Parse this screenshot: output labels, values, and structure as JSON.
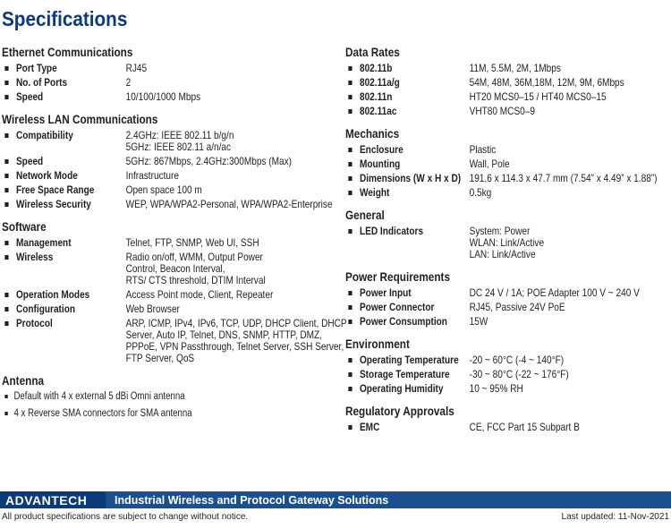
{
  "header": {
    "title": "Specifications"
  },
  "left_column": [
    {
      "heading": "Ethernet Communications",
      "items": [
        {
          "label": "Port Type",
          "value": [
            "RJ45"
          ]
        },
        {
          "label": "No. of Ports",
          "value": [
            "2"
          ]
        },
        {
          "label": "Speed",
          "value": [
            "10/100/1000 Mbps"
          ]
        }
      ]
    },
    {
      "heading": "Wireless LAN Communications",
      "items": [
        {
          "label": "Compatibility",
          "value": [
            "2.4GHz: IEEE 802.11 b/g/n",
            "5GHz: IEEE 802.11 a/n/ac"
          ]
        },
        {
          "label": "Speed",
          "value": [
            "5GHz: 867Mbps, 2.4GHz:300Mbps (Max)"
          ]
        },
        {
          "label": "Network Mode",
          "value": [
            "Infrastructure"
          ]
        },
        {
          "label": "Free Space Range",
          "value": [
            "Open space 100 m"
          ]
        },
        {
          "label": "Wireless Security",
          "value": [
            "WEP, WPA/WPA2-Personal, WPA/WPA2-Enterprise"
          ]
        }
      ]
    },
    {
      "heading": "Software",
      "items": [
        {
          "label": "Management",
          "value": [
            "Telnet, FTP, SNMP, Web UI, SSH"
          ]
        },
        {
          "label": "Wireless",
          "value": [
            "Radio on/off, WMM, Output Power",
            "Control, Beacon Interval,",
            "RTS/ CTS threshold, DTIM Interval"
          ]
        },
        {
          "label": "Operation Modes",
          "value": [
            "Access Point mode, Client, Repeater"
          ]
        },
        {
          "label": "Configuration",
          "value": [
            "Web Browser"
          ]
        },
        {
          "label": "Protocol",
          "value": [
            "ARP, ICMP, IPv4, IPv6, TCP, UDP, DHCP Client, DHCP",
            "Server, Auto IP, Telnet, DNS, SNMP, HTTP, DMZ,",
            "PPPoE, VPN Passthrough, Telnet Server, SSH Server,",
            "FTP Server, QoS"
          ]
        }
      ]
    },
    {
      "heading": "Antenna",
      "bullets": [
        "Default with 4 x external 5 dBi Omni antenna",
        "4 x Reverse SMA connectors for SMA antenna"
      ]
    }
  ],
  "right_column": [
    {
      "heading": "Data Rates",
      "items": [
        {
          "label": "802.11b",
          "value": [
            "11M, 5.5M, 2M, 1Mbps"
          ]
        },
        {
          "label": "802.11a/g",
          "value": [
            "54M, 48M, 36M,18M, 12M, 9M, 6Mbps"
          ]
        },
        {
          "label": "802.11n",
          "value": [
            "HT20 MCS0–15 / HT40 MCS0–15"
          ]
        },
        {
          "label": "802.11ac",
          "value": [
            "VHT80 MCS0–9"
          ]
        }
      ]
    },
    {
      "heading": "Mechanics",
      "items": [
        {
          "label": "Enclosure",
          "value": [
            "Plastic"
          ]
        },
        {
          "label": "Mounting",
          "value": [
            "Wall, Pole"
          ]
        },
        {
          "label": "Dimensions (W x H x D)",
          "value": [
            "191.6 x 114.3 x 47.7 mm (7.54” x 4.49” x 1.88”)"
          ]
        },
        {
          "label": "Weight",
          "value": [
            "0.5kg"
          ]
        }
      ]
    },
    {
      "heading": "General",
      "items": [
        {
          "label": "LED Indicators",
          "value": [
            "System: Power",
            "WLAN: Link/Active",
            "LAN: Link/Active"
          ]
        }
      ]
    },
    {
      "heading": "Power Requirements",
      "items": [
        {
          "label": "Power Input",
          "value": [
            "DC 24 V / 1A; POE Adapter 100 V ~ 240 V"
          ]
        },
        {
          "label": "Power Connector",
          "value": [
            "RJ45, Passive 24V PoE"
          ]
        },
        {
          "label": "Power Consumption",
          "value": [
            "15W"
          ]
        }
      ]
    },
    {
      "heading": "Environment",
      "items": [
        {
          "label": "Operating Temperature",
          "value": [
            "-20 ~ 60°C (-4 ~ 140°F)"
          ]
        },
        {
          "label": "Storage Temperature",
          "value": [
            "-30 ~ 80°C (-22 ~ 176°F)"
          ]
        },
        {
          "label": "Operating Humidity",
          "value": [
            "10 ~ 95% RH"
          ]
        }
      ]
    },
    {
      "heading": "Regulatory Approvals",
      "items": [
        {
          "label": "EMC",
          "value": [
            "CE, FCC Part 15 Subpart B"
          ]
        }
      ]
    }
  ],
  "footer": {
    "brand": "ADVANTECH",
    "tagline": "Industrial Wireless and Protocol Gateway Solutions",
    "note": "All product specifications are subject to change without notice.",
    "updated": "Last updated: 11-Nov-2021"
  }
}
